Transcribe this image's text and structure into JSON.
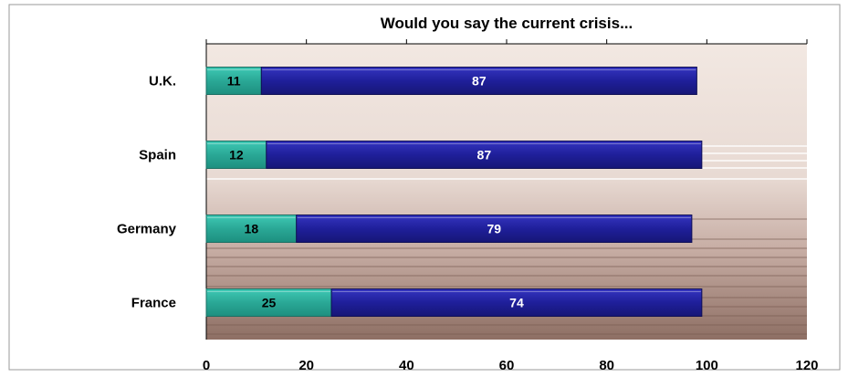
{
  "chart_data": {
    "type": "bar",
    "orientation": "horizontal",
    "stacked": true,
    "title": "Would you say the current crisis...",
    "categories": [
      "U.K.",
      "Spain",
      "Germany",
      "France"
    ],
    "series": [
      {
        "values": [
          11,
          12,
          18,
          25
        ]
      },
      {
        "values": [
          87,
          87,
          79,
          74
        ]
      }
    ],
    "xlim": [
      0,
      120
    ],
    "xticks": [
      "0",
      "20",
      "40",
      "60",
      "80",
      "100",
      "120"
    ],
    "colors": [
      "#2fb3a0",
      "#23239a"
    ],
    "label_colors": [
      "#000000",
      "#ffffff"
    ],
    "background": [
      "#efe3dc",
      "#8a6a5f"
    ],
    "legend": "none"
  }
}
